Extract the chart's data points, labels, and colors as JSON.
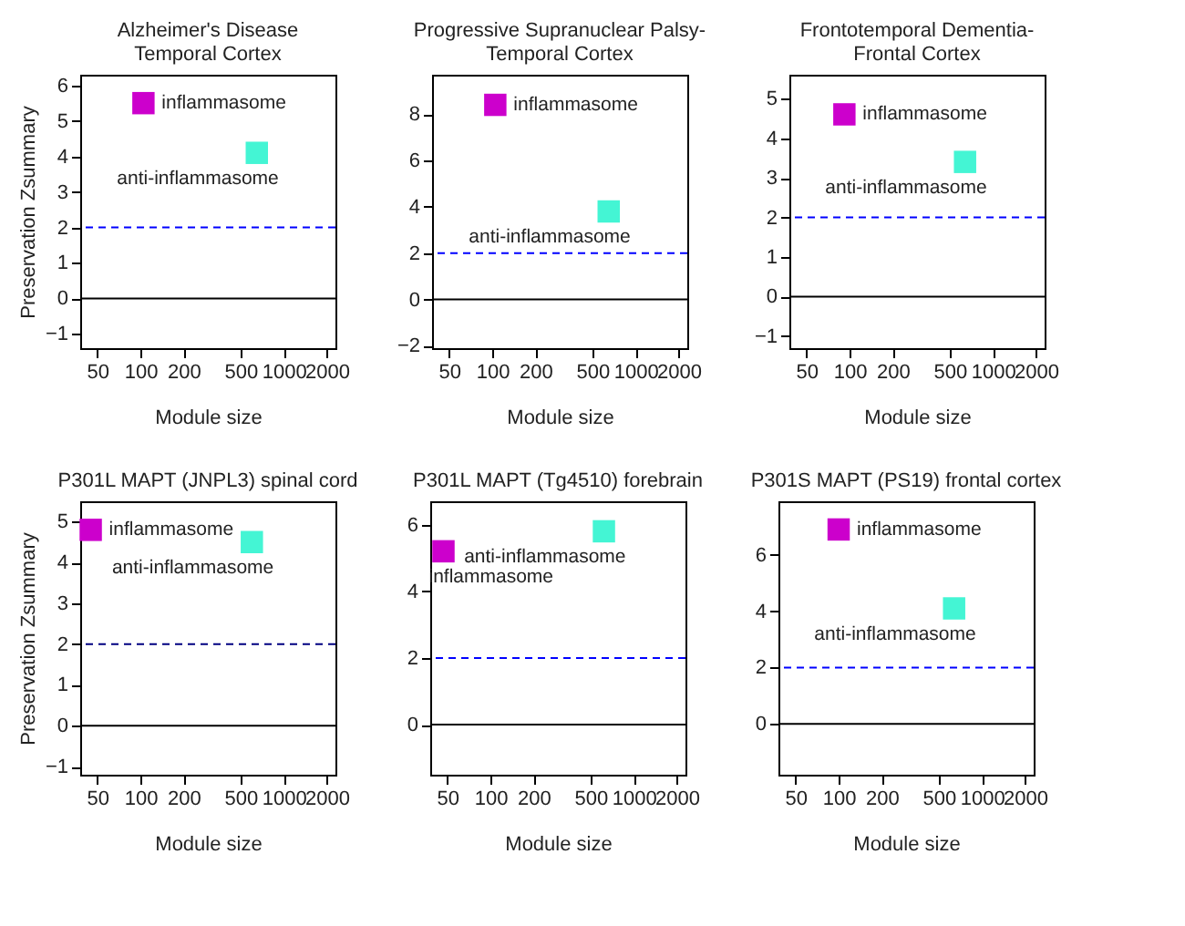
{
  "chart_data": [
    {
      "type": "scatter",
      "title": "Alzheimer's Disease\nTemporal Cortex",
      "xlabel": "Module size",
      "ylabel": "Preservation Zsummary",
      "log": "x",
      "marker": "square",
      "grid": false,
      "xlim": [
        38,
        2300
      ],
      "xticks": [
        50,
        100,
        200,
        500,
        1000,
        2000
      ],
      "ylim": [
        -1.4,
        6.3
      ],
      "yticks": [
        -1,
        0,
        1,
        2,
        3,
        4,
        5,
        6
      ],
      "series": [
        {
          "name": "inflammasome",
          "color": "#cc00cc",
          "x": [
            105
          ],
          "values": [
            5.5
          ]
        },
        {
          "name": "anti-inflammasome",
          "color": "#44f5d4",
          "x": [
            650
          ],
          "values": [
            4.1
          ]
        }
      ],
      "ref_lines": [
        {
          "axis": "y",
          "value": 2,
          "color": "#0000ff",
          "line_style": "dashed"
        },
        {
          "axis": "y",
          "value": 0,
          "color": "#000000",
          "line_style": "solid"
        }
      ]
    },
    {
      "type": "scatter",
      "title": "Progressive Supranuclear Palsy-\nTemporal Cortex",
      "xlabel": "Module size",
      "log": "x",
      "marker": "square",
      "grid": false,
      "xlim": [
        38,
        2300
      ],
      "xticks": [
        50,
        100,
        200,
        500,
        1000,
        2000
      ],
      "ylim": [
        -2.1,
        9.7
      ],
      "yticks": [
        -2,
        0,
        2,
        4,
        6,
        8
      ],
      "series": [
        {
          "name": "inflammasome",
          "color": "#cc00cc",
          "x": [
            105
          ],
          "values": [
            8.4
          ]
        },
        {
          "name": "anti-inflammasome",
          "color": "#44f5d4",
          "x": [
            650
          ],
          "values": [
            3.8
          ]
        }
      ],
      "ref_lines": [
        {
          "axis": "y",
          "value": 2,
          "color": "#0000ff",
          "line_style": "dashed"
        },
        {
          "axis": "y",
          "value": 0,
          "color": "#000000",
          "line_style": "solid"
        }
      ]
    },
    {
      "type": "scatter",
      "title": "Frontotemporal Dementia-\nFrontal Cortex",
      "xlabel": "Module size",
      "log": "x",
      "marker": "square",
      "grid": false,
      "xlim": [
        38,
        2300
      ],
      "xticks": [
        50,
        100,
        200,
        500,
        1000,
        2000
      ],
      "ylim": [
        -1.3,
        5.6
      ],
      "yticks": [
        -1,
        0,
        1,
        2,
        3,
        4,
        5
      ],
      "series": [
        {
          "name": "inflammasome",
          "color": "#cc00cc",
          "x": [
            92
          ],
          "values": [
            4.6
          ]
        },
        {
          "name": "anti-inflammasome",
          "color": "#44f5d4",
          "x": [
            640
          ],
          "values": [
            3.4
          ]
        }
      ],
      "ref_lines": [
        {
          "axis": "y",
          "value": 2,
          "color": "#0000ff",
          "line_style": "dashed"
        },
        {
          "axis": "y",
          "value": 0,
          "color": "#000000",
          "line_style": "solid"
        }
      ]
    },
    {
      "type": "scatter",
      "title": "P301L MAPT (JNPL3) spinal cord",
      "xlabel": "Module size",
      "ylabel": "Preservation Zsummary",
      "log": "x",
      "marker": "square",
      "grid": false,
      "xlim": [
        38,
        2300
      ],
      "xticks": [
        50,
        100,
        200,
        500,
        1000,
        2000
      ],
      "ylim": [
        -1.2,
        5.5
      ],
      "yticks": [
        -1,
        0,
        1,
        2,
        3,
        4,
        5
      ],
      "series": [
        {
          "name": "inflammasome",
          "color": "#cc00cc",
          "x": [
            45
          ],
          "values": [
            4.8
          ]
        },
        {
          "name": "anti-inflammasome",
          "color": "#44f5d4",
          "x": [
            600
          ],
          "values": [
            4.5
          ]
        }
      ],
      "ref_lines": [
        {
          "axis": "y",
          "value": 2,
          "color": "#000080",
          "line_style": "dashed"
        },
        {
          "axis": "y",
          "value": 0,
          "color": "#000000",
          "line_style": "solid"
        }
      ]
    },
    {
      "type": "scatter",
      "title": "P301L MAPT (Tg4510) forebrain",
      "xlabel": "Module size",
      "log": "x",
      "marker": "square",
      "grid": false,
      "xlim": [
        38,
        2300
      ],
      "xticks": [
        50,
        100,
        200,
        500,
        1000,
        2000
      ],
      "ylim": [
        -1.5,
        6.7
      ],
      "yticks": [
        0,
        2,
        4,
        6
      ],
      "series": [
        {
          "name": "inflammasome",
          "color": "#cc00cc",
          "x": [
            47
          ],
          "values": [
            5.2
          ]
        },
        {
          "name": "anti-inflammasome",
          "color": "#44f5d4",
          "x": [
            620
          ],
          "values": [
            5.8
          ]
        }
      ],
      "ref_lines": [
        {
          "axis": "y",
          "value": 2,
          "color": "#0000ff",
          "line_style": "dashed"
        },
        {
          "axis": "y",
          "value": 0,
          "color": "#000000",
          "line_style": "solid"
        }
      ]
    },
    {
      "type": "scatter",
      "title": "P301S MAPT (PS19) frontal cortex",
      "xlabel": "Module size",
      "log": "x",
      "marker": "square",
      "grid": false,
      "xlim": [
        38,
        2300
      ],
      "xticks": [
        50,
        100,
        200,
        500,
        1000,
        2000
      ],
      "ylim": [
        -1.8,
        7.9
      ],
      "yticks": [
        0,
        2,
        4,
        6
      ],
      "series": [
        {
          "name": "inflammasome",
          "color": "#cc00cc",
          "x": [
            100
          ],
          "values": [
            6.9
          ]
        },
        {
          "name": "anti-inflammasome",
          "color": "#44f5d4",
          "x": [
            640
          ],
          "values": [
            4.1
          ]
        }
      ],
      "ref_lines": [
        {
          "axis": "y",
          "value": 2,
          "color": "#0000ff",
          "line_style": "dashed"
        },
        {
          "axis": "y",
          "value": 0,
          "color": "#000000",
          "line_style": "solid"
        }
      ]
    }
  ]
}
